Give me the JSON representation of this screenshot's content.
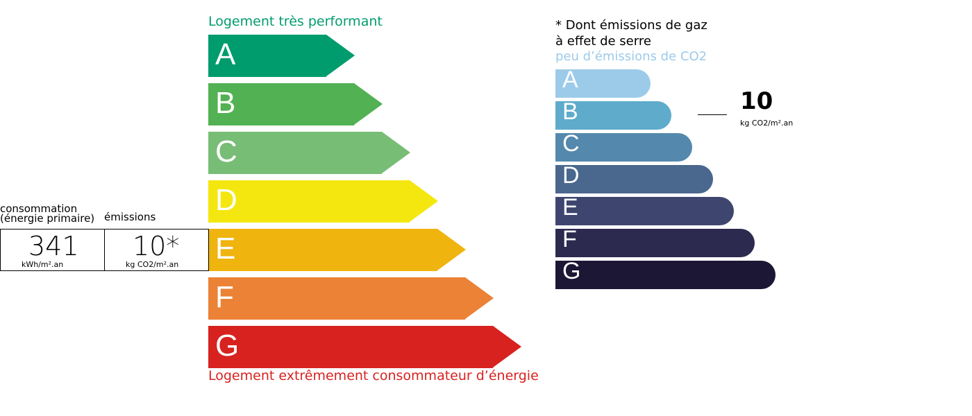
{
  "energy": {
    "top_label": "Logement très performant",
    "bottom_label": "Logement extrêmement consommateur d’énergie",
    "top_color": "#009c6d",
    "bottom_color": "#d7221f",
    "classes": [
      {
        "letter": "A",
        "color": "#009c6d"
      },
      {
        "letter": "B",
        "color": "#52b153"
      },
      {
        "letter": "C",
        "color": "#78bd76"
      },
      {
        "letter": "D",
        "color": "#f4e70f"
      },
      {
        "letter": "E",
        "color": "#f0b40f"
      },
      {
        "letter": "F",
        "color": "#eb8235"
      },
      {
        "letter": "G",
        "color": "#d7221f"
      }
    ]
  },
  "summary": {
    "consumption_label_1": "consommation",
    "consumption_label_2": "(énergie primaire)",
    "emissions_label": "émissions",
    "consumption_value": "341",
    "consumption_unit": "kWh/m².an",
    "emissions_value": "10*",
    "emissions_unit": "kg CO2/m².an",
    "energy_class": "E"
  },
  "ghg": {
    "note_1": "* Dont émissions de gaz",
    "note_2": "à effet de serre",
    "top_label": "peu d’émissions de CO2",
    "top_color": "#9ccbea",
    "value": "10",
    "unit": "kg CO2/m².an",
    "class": "B",
    "classes": [
      {
        "letter": "A",
        "color": "#9ccbea"
      },
      {
        "letter": "B",
        "color": "#5eabcc"
      },
      {
        "letter": "C",
        "color": "#5489ad"
      },
      {
        "letter": "D",
        "color": "#4a678d"
      },
      {
        "letter": "E",
        "color": "#3e466f"
      },
      {
        "letter": "F",
        "color": "#2d2a50"
      },
      {
        "letter": "G",
        "color": "#1c1735"
      }
    ]
  }
}
